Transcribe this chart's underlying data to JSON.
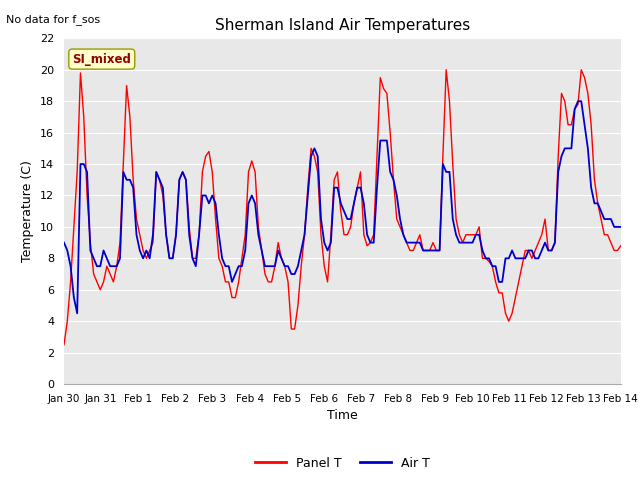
{
  "title": "Sherman Island Air Temperatures",
  "xlabel": "Time",
  "ylabel": "Temperature (C)",
  "note": "No data for f_sos",
  "legend_label": "SI_mixed",
  "xtick_labels": [
    "Jan 30",
    "Jan 31",
    "Feb 1",
    "Feb 2",
    "Feb 3",
    "Feb 4",
    "Feb 5",
    "Feb 6",
    "Feb 7",
    "Feb 8",
    "Feb 9",
    "Feb 10",
    "Feb 11",
    "Feb 12",
    "Feb 13",
    "Feb 14"
  ],
  "ylim": [
    0,
    22
  ],
  "yticks": [
    0,
    2,
    4,
    6,
    8,
    10,
    12,
    14,
    16,
    18,
    20,
    22
  ],
  "panel_color": "#ff0000",
  "air_color": "#0000cc",
  "bg_color": "#e8e8e8",
  "legend_box_facecolor": "#ffffcc",
  "legend_box_edgecolor": "#999900",
  "legend_text_color": "#990000",
  "panel_T": [
    2.5,
    4.0,
    6.5,
    10.0,
    13.5,
    19.8,
    17.0,
    12.0,
    9.0,
    7.0,
    6.5,
    6.0,
    6.5,
    7.5,
    7.0,
    6.5,
    7.5,
    9.0,
    14.0,
    19.0,
    17.0,
    13.0,
    10.5,
    9.5,
    8.5,
    8.0,
    8.5,
    9.0,
    13.5,
    13.0,
    12.0,
    9.5,
    8.0,
    8.0,
    9.5,
    13.0,
    13.5,
    13.0,
    10.0,
    8.0,
    8.0,
    9.5,
    13.5,
    14.5,
    14.8,
    13.5,
    10.5,
    8.0,
    7.5,
    6.5,
    6.5,
    5.5,
    5.5,
    6.5,
    8.0,
    9.5,
    13.5,
    14.2,
    13.5,
    10.0,
    8.5,
    7.0,
    6.5,
    6.5,
    7.5,
    9.0,
    8.0,
    7.5,
    6.5,
    3.5,
    3.5,
    5.0,
    7.5,
    9.5,
    12.5,
    15.0,
    14.5,
    13.5,
    9.5,
    7.5,
    6.5,
    9.5,
    13.0,
    13.5,
    11.0,
    9.5,
    9.5,
    10.0,
    11.5,
    12.5,
    13.5,
    9.5,
    8.8,
    9.0,
    9.5,
    14.5,
    19.5,
    18.8,
    18.5,
    16.0,
    13.0,
    10.5,
    10.0,
    9.5,
    9.0,
    8.5,
    8.5,
    9.0,
    9.5,
    8.5,
    8.5,
    8.5,
    9.0,
    8.5,
    8.5,
    14.5,
    20.0,
    18.0,
    14.0,
    10.5,
    9.5,
    9.0,
    9.5,
    9.5,
    9.5,
    9.5,
    10.0,
    8.0,
    8.0,
    7.8,
    7.5,
    6.5,
    5.8,
    5.8,
    4.5,
    4.0,
    4.5,
    5.5,
    6.5,
    7.5,
    8.5,
    8.5,
    8.0,
    8.5,
    9.0,
    9.5,
    10.5,
    8.5,
    8.5,
    9.0,
    14.5,
    18.5,
    18.0,
    16.5,
    16.5,
    17.5,
    17.8,
    20.0,
    19.5,
    18.5,
    16.5,
    13.0,
    11.5,
    10.5,
    9.5,
    9.5,
    9.0,
    8.5,
    8.5,
    8.8
  ],
  "air_T": [
    9.0,
    8.5,
    7.5,
    5.5,
    4.5,
    14.0,
    14.0,
    13.5,
    8.5,
    8.0,
    7.5,
    7.5,
    8.5,
    8.0,
    7.5,
    7.5,
    7.5,
    8.0,
    13.5,
    13.0,
    13.0,
    12.5,
    9.5,
    8.5,
    8.0,
    8.5,
    8.0,
    9.5,
    13.5,
    13.0,
    12.5,
    9.5,
    8.0,
    8.0,
    9.5,
    13.0,
    13.5,
    13.0,
    9.5,
    8.0,
    7.5,
    9.5,
    12.0,
    12.0,
    11.5,
    12.0,
    11.5,
    9.5,
    8.0,
    7.5,
    7.5,
    6.5,
    7.0,
    7.5,
    7.5,
    8.5,
    11.5,
    12.0,
    11.5,
    9.5,
    8.5,
    7.5,
    7.5,
    7.5,
    7.5,
    8.5,
    8.0,
    7.5,
    7.5,
    7.0,
    7.0,
    7.5,
    8.5,
    9.5,
    12.0,
    14.5,
    15.0,
    14.5,
    10.5,
    9.0,
    8.5,
    9.0,
    12.5,
    12.5,
    11.5,
    11.0,
    10.5,
    10.5,
    11.5,
    12.5,
    12.5,
    11.5,
    9.5,
    9.0,
    9.0,
    12.5,
    15.5,
    15.5,
    15.5,
    13.5,
    13.0,
    12.0,
    10.5,
    9.5,
    9.0,
    9.0,
    9.0,
    9.0,
    9.0,
    8.5,
    8.5,
    8.5,
    8.5,
    8.5,
    8.5,
    14.0,
    13.5,
    13.5,
    10.5,
    9.5,
    9.0,
    9.0,
    9.0,
    9.0,
    9.0,
    9.5,
    9.5,
    8.5,
    8.0,
    8.0,
    7.5,
    7.5,
    6.5,
    6.5,
    8.0,
    8.0,
    8.5,
    8.0,
    8.0,
    8.0,
    8.0,
    8.5,
    8.5,
    8.0,
    8.0,
    8.5,
    9.0,
    8.5,
    8.5,
    9.0,
    13.5,
    14.5,
    15.0,
    15.0,
    15.0,
    17.5,
    18.0,
    18.0,
    16.5,
    15.0,
    12.5,
    11.5,
    11.5,
    11.0,
    10.5,
    10.5,
    10.5,
    10.0,
    10.0,
    10.0
  ]
}
